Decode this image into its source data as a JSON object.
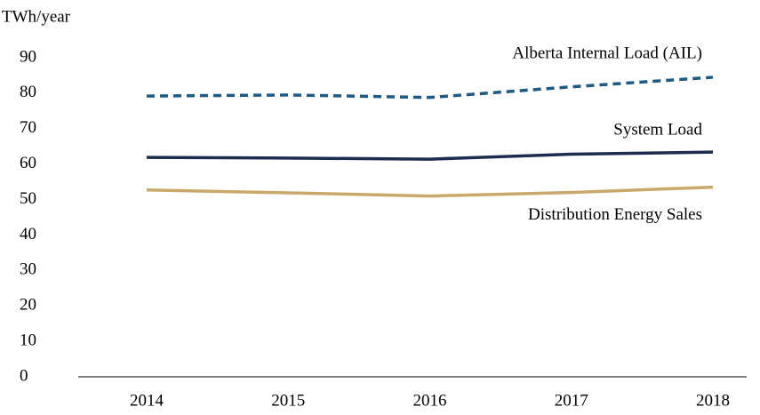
{
  "chart_data": {
    "type": "line",
    "y_label": "TWh/year",
    "categories": [
      "2014",
      "2015",
      "2016",
      "2017",
      "2018"
    ],
    "series": [
      {
        "name": "Alberta Internal Load (AIL)",
        "color": "#1f5a85",
        "dashed": true,
        "values": [
          79.2,
          79.5,
          78.8,
          81.8,
          84.5
        ]
      },
      {
        "name": "System Load",
        "color": "#1c2d4f",
        "dashed": false,
        "values": [
          61.9,
          61.7,
          61.4,
          62.8,
          63.4
        ]
      },
      {
        "name": "Distribution Energy Sales",
        "color": "#c9a96b",
        "dashed": false,
        "values": [
          52.7,
          51.9,
          51.0,
          52.0,
          53.5
        ]
      }
    ],
    "ylim": [
      0,
      90
    ],
    "yticks": [
      0,
      10,
      20,
      30,
      40,
      50,
      60,
      70,
      80,
      90
    ],
    "grid": false
  }
}
